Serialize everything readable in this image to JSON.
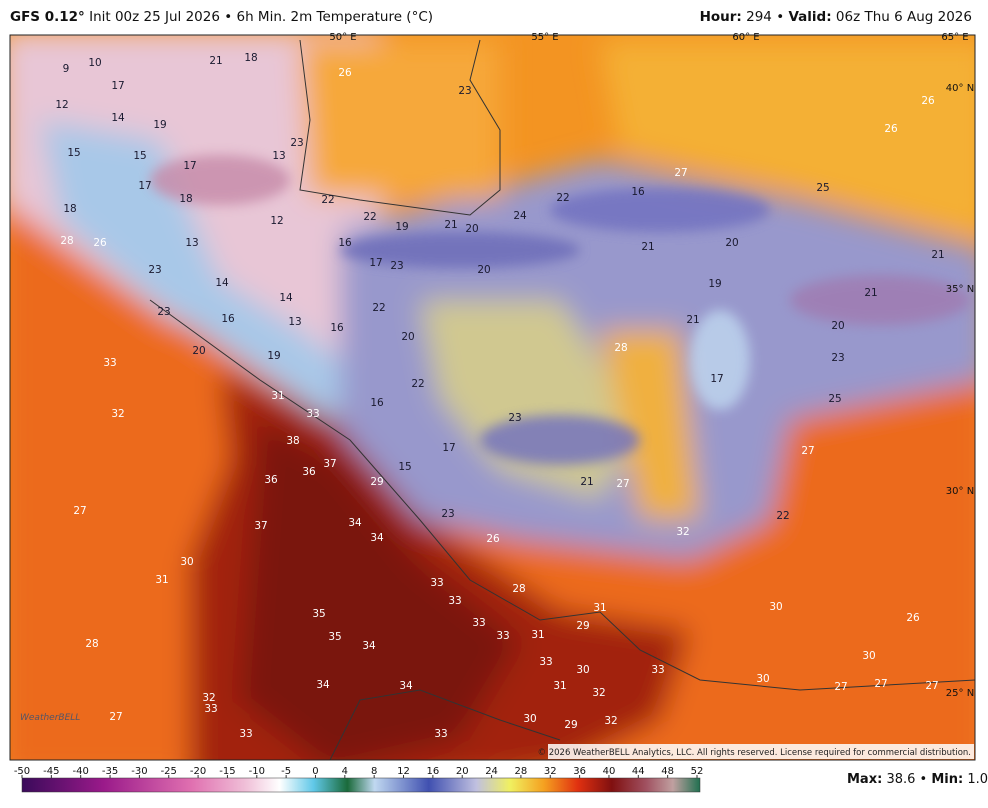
{
  "header": {
    "model": "GFS 0.12°",
    "init": "Init 00z 25 Jul 2026",
    "separator": "•",
    "product": "6h Min. 2m Temperature (°C)",
    "hour_label": "Hour:",
    "hour": "294",
    "valid_label": "Valid:",
    "valid": "06z Thu 6 Aug 2026"
  },
  "map": {
    "lon_labels": [
      "50° E",
      "55° E",
      "60° E",
      "65° E"
    ],
    "lat_labels": [
      "40° N",
      "35° N",
      "30° N",
      "25° N"
    ],
    "station_values": [
      9,
      10,
      17,
      12,
      14,
      19,
      15,
      15,
      17,
      17,
      18,
      18,
      12,
      13,
      28,
      26,
      23,
      14,
      14,
      16,
      23,
      13,
      16,
      20,
      19,
      33,
      32,
      31,
      33,
      38,
      37,
      36,
      36,
      37,
      34,
      34,
      27,
      30,
      31,
      28,
      35,
      35,
      34,
      34,
      34,
      32,
      33,
      27,
      33,
      33,
      33,
      33,
      33,
      33,
      31,
      28,
      26,
      23,
      16,
      15,
      29,
      17,
      22,
      20,
      22,
      16,
      17,
      23,
      22,
      22,
      19,
      21,
      20,
      24,
      20,
      22,
      16,
      27,
      21,
      20,
      19,
      21,
      28,
      17,
      23,
      21,
      27,
      32,
      22,
      27,
      25,
      23,
      20,
      21,
      21,
      25,
      26,
      26,
      33,
      31,
      29,
      32,
      31,
      30,
      33,
      29,
      32,
      30,
      30,
      26,
      30,
      30,
      27,
      27,
      27,
      23,
      26,
      23,
      13,
      21,
      18
    ],
    "copyright": "© 2026 WeatherBELL Analytics, LLC. All rights reserved. License required for commercial distribution.",
    "logo": "WeatherBELL"
  },
  "colorbar": {
    "ticks": [
      -50,
      -45,
      -40,
      -35,
      -30,
      -25,
      -20,
      -15,
      -10,
      -5,
      0,
      4,
      8,
      12,
      16,
      20,
      24,
      28,
      32,
      36,
      40,
      44,
      48,
      52
    ]
  },
  "footer": {
    "max_label": "Max:",
    "max": "38.6",
    "separator": "•",
    "min_label": "Min:",
    "min": "1.0"
  }
}
